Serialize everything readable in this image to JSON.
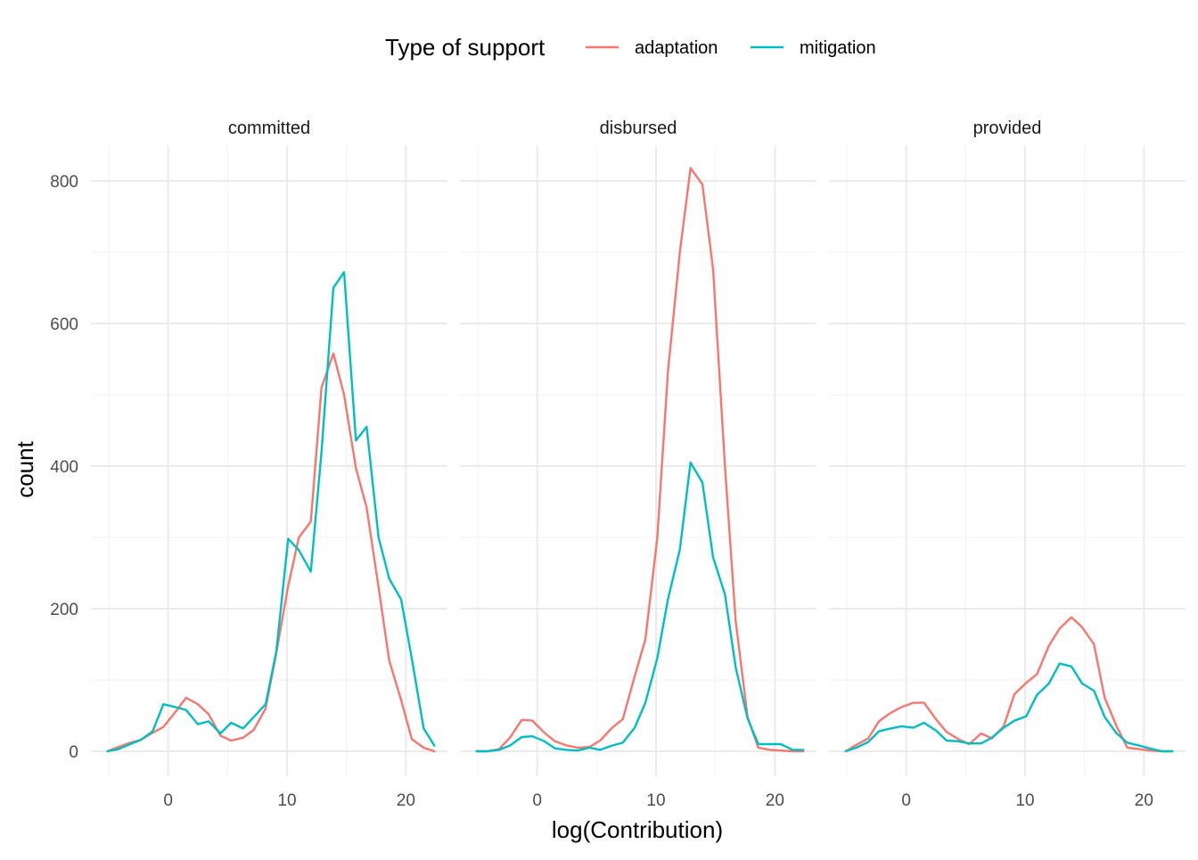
{
  "chart_data": {
    "type": "line",
    "xlabel": "log(Contribution)",
    "ylabel": "count",
    "xlim": [
      -6.5,
      23.5
    ],
    "ylim": [
      -35,
      850
    ],
    "x_ticks": [
      0,
      10,
      20
    ],
    "y_ticks": [
      0,
      200,
      400,
      600,
      800
    ],
    "grid": true,
    "legend": {
      "title": "Type of support",
      "position": "top",
      "entries": [
        {
          "label": "adaptation",
          "color": "#F8766D"
        },
        {
          "label": "mitigation",
          "color": "#00BFC4"
        }
      ]
    },
    "x": [
      -5.1,
      -4.2,
      -3.2,
      -2.3,
      -1.3,
      -0.4,
      0.6,
      1.5,
      2.5,
      3.4,
      4.4,
      5.3,
      6.3,
      7.2,
      8.2,
      9.1,
      10.1,
      11.0,
      12.0,
      12.9,
      13.9,
      14.8,
      15.8,
      16.7,
      17.7,
      18.6,
      19.6,
      20.5,
      21.5,
      22.4
    ],
    "panels": [
      {
        "label": "committed",
        "series": [
          {
            "name": "adaptation",
            "color": "#F8766D",
            "values": [
              0,
              6,
              12,
              16,
              26,
              34,
              55,
              75,
              66,
              52,
              22,
              15,
              19,
              30,
              60,
              138,
              232,
              300,
              322,
              510,
              558,
              500,
              397,
              342,
              230,
              127,
              72,
              17,
              5,
              0
            ]
          },
          {
            "name": "mitigation",
            "color": "#00BFC4",
            "values": [
              0,
              3,
              10,
              16,
              28,
              66,
              62,
              58,
              38,
              42,
              25,
              40,
              32,
              48,
              66,
              140,
              298,
              282,
              252,
              420,
              650,
              672,
              436,
              455,
              300,
              242,
              213,
              130,
              32,
              8
            ]
          }
        ]
      },
      {
        "label": "disbursed",
        "series": [
          {
            "name": "adaptation",
            "color": "#F8766D",
            "values": [
              0,
              0,
              3,
              19,
              44,
              43,
              26,
              14,
              8,
              5,
              6,
              15,
              33,
              45,
              105,
              157,
              298,
              532,
              700,
              818,
              795,
              676,
              400,
              183,
              48,
              5,
              2,
              1,
              0,
              0
            ]
          },
          {
            "name": "mitigation",
            "color": "#00BFC4",
            "values": [
              0,
              0,
              2,
              8,
              20,
              21,
              14,
              4,
              2,
              1,
              5,
              2,
              8,
              12,
              33,
              68,
              130,
              213,
              283,
              405,
              377,
              272,
              220,
              118,
              46,
              10,
              10,
              10,
              2,
              2
            ]
          }
        ]
      },
      {
        "label": "provided",
        "series": [
          {
            "name": "adaptation",
            "color": "#F8766D",
            "values": [
              0,
              9,
              18,
              42,
              54,
              62,
              68,
              68,
              45,
              27,
              17,
              10,
              25,
              18,
              35,
              80,
              96,
              108,
              148,
              172,
              188,
              174,
              150,
              75,
              35,
              5,
              3,
              1,
              0,
              0
            ]
          },
          {
            "name": "mitigation",
            "color": "#00BFC4",
            "values": [
              0,
              5,
              13,
              28,
              32,
              35,
              33,
              40,
              29,
              15,
              14,
              11,
              11,
              19,
              33,
              43,
              49,
              79,
              95,
              123,
              119,
              95,
              85,
              48,
              25,
              12,
              8,
              4,
              0,
              0
            ]
          }
        ]
      }
    ]
  }
}
